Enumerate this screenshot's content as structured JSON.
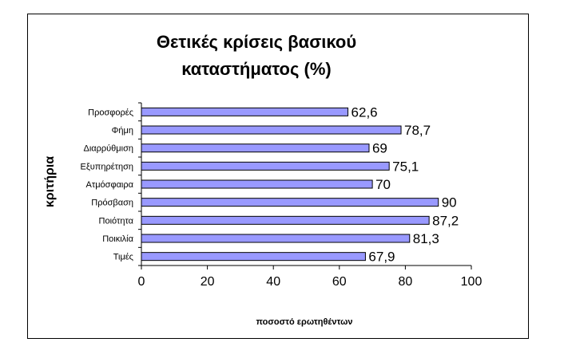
{
  "chart_data": {
    "type": "bar",
    "orientation": "horizontal",
    "title_line1": "Θετικές κρίσεις βασικού",
    "title_line2": "καταστήματος (%)",
    "xlabel": "ποσοστό ερωτηθέντων",
    "ylabel": "κριτήρια",
    "categories": [
      "Προσφορές",
      "Φήμη",
      "Διαρρύθμιση",
      "Εξυπηρέτηση",
      "Ατμόσφαιρα",
      "Πρόσβαση",
      "Ποιότητα",
      "Ποικιλία",
      "Τιμές"
    ],
    "values": [
      62.6,
      78.7,
      69,
      75.1,
      70,
      90,
      87.2,
      81.3,
      67.9
    ],
    "value_labels": [
      "62,6",
      "78,7",
      "69",
      "75,1",
      "70",
      "90",
      "87,2",
      "81,3",
      "67,9"
    ],
    "xlim": [
      0,
      100
    ],
    "xticks": [
      "0",
      "20",
      "40",
      "60",
      "80",
      "100"
    ],
    "grid": false,
    "legend": "none",
    "bar_color": "#9999ff",
    "bar_border": "#000000"
  }
}
